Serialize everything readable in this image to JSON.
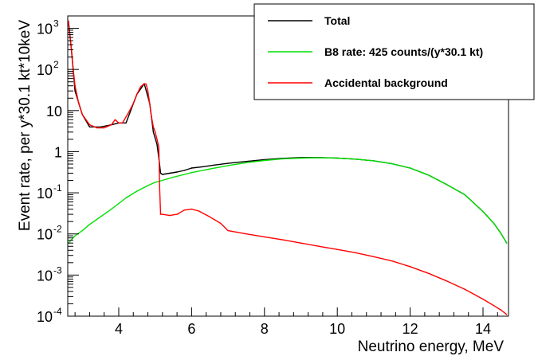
{
  "chart_data": {
    "type": "line",
    "xlabel": "Neutrino energy, MeV",
    "ylabel": "Event rate, per y*30.1 kt*10keV",
    "x_range": [
      2.6,
      14.7
    ],
    "y_range": [
      0.0001,
      2000
    ],
    "y_scale": "log",
    "grid": false,
    "legend_position": "top-right",
    "x_ticks": [
      4,
      6,
      8,
      10,
      12,
      14
    ],
    "x_tick_labels": [
      "4",
      "6",
      "8",
      "10",
      "12",
      "14"
    ],
    "y_ticks": [
      0.0001,
      0.001,
      0.01,
      0.1,
      1,
      10,
      100,
      1000
    ],
    "y_tick_labels": [
      {
        "base": "10",
        "exp": "-4"
      },
      {
        "base": "10",
        "exp": "-3"
      },
      {
        "base": "10",
        "exp": "-2"
      },
      {
        "base": "10",
        "exp": "-1"
      },
      {
        "base": "1",
        "exp": ""
      },
      {
        "base": "10",
        "exp": ""
      },
      {
        "base": "10",
        "exp": "2"
      },
      {
        "base": "10",
        "exp": "3"
      }
    ],
    "series": [
      {
        "name": "Total",
        "color": "#000000",
        "x": [
          2.62,
          2.7,
          2.8,
          3.0,
          3.2,
          3.5,
          3.8,
          4.0,
          4.2,
          4.5,
          4.7,
          4.85,
          4.95,
          5.05,
          5.1,
          5.15,
          5.2,
          5.4,
          5.6,
          5.8,
          6.0,
          6.3,
          6.6,
          7.0,
          7.5,
          8.0,
          8.5,
          9.0,
          9.5,
          10.0,
          10.5,
          11.0,
          11.5,
          12.0,
          12.5,
          13.0,
          13.5,
          14.0,
          14.3,
          14.5,
          14.65
        ],
        "y": [
          1500,
          300,
          30,
          8,
          4,
          4,
          4.5,
          5,
          5,
          25,
          45,
          15,
          3,
          1.5,
          0.7,
          0.3,
          0.28,
          0.3,
          0.32,
          0.35,
          0.4,
          0.43,
          0.47,
          0.52,
          0.58,
          0.64,
          0.69,
          0.72,
          0.72,
          0.7,
          0.66,
          0.6,
          0.51,
          0.4,
          0.27,
          0.16,
          0.09,
          0.035,
          0.018,
          0.01,
          0.006
        ]
      },
      {
        "name": "B8 rate: 425 counts/(y*30.1 kt)",
        "color": "#00e000",
        "x": [
          2.62,
          2.8,
          3.0,
          3.2,
          3.5,
          3.8,
          4.0,
          4.2,
          4.5,
          4.8,
          5.0,
          5.2,
          5.5,
          6.0,
          6.5,
          7.0,
          7.5,
          8.0,
          8.5,
          9.0,
          9.5,
          10.0,
          10.5,
          11.0,
          11.5,
          12.0,
          12.5,
          13.0,
          13.5,
          14.0,
          14.3,
          14.5,
          14.65
        ],
        "y": [
          0.006,
          0.009,
          0.012,
          0.017,
          0.026,
          0.04,
          0.055,
          0.075,
          0.11,
          0.15,
          0.18,
          0.2,
          0.24,
          0.31,
          0.38,
          0.46,
          0.54,
          0.61,
          0.67,
          0.7,
          0.71,
          0.7,
          0.66,
          0.6,
          0.51,
          0.4,
          0.27,
          0.16,
          0.09,
          0.035,
          0.018,
          0.01,
          0.006
        ]
      },
      {
        "name": "Accidental background",
        "color": "#ff0000",
        "x": [
          2.62,
          2.65,
          2.7,
          2.75,
          2.8,
          2.9,
          3.0,
          3.2,
          3.4,
          3.6,
          3.8,
          3.9,
          4.0,
          4.1,
          4.2,
          4.3,
          4.4,
          4.5,
          4.6,
          4.7,
          4.75,
          4.8,
          4.85,
          4.9,
          4.95,
          5.0,
          5.05,
          5.1,
          5.12,
          5.15,
          5.2,
          5.4,
          5.6,
          5.8,
          6.0,
          6.2,
          6.5,
          6.8,
          7.0,
          7.5,
          8.0,
          8.5,
          9.0,
          9.5,
          10.0,
          10.5,
          11.0,
          11.5,
          12.0,
          12.5,
          13.0,
          13.5,
          14.0,
          14.3,
          14.5,
          14.65
        ],
        "y": [
          1500,
          800,
          300,
          100,
          40,
          15,
          8,
          4.5,
          3.8,
          3.8,
          4.5,
          6,
          5,
          5,
          7,
          10,
          15,
          25,
          38,
          45,
          44,
          30,
          15,
          7,
          4,
          3,
          2,
          1.3,
          0.15,
          0.03,
          0.03,
          0.028,
          0.03,
          0.038,
          0.04,
          0.036,
          0.026,
          0.018,
          0.012,
          0.01,
          0.0085,
          0.0072,
          0.006,
          0.005,
          0.0042,
          0.0035,
          0.0028,
          0.0022,
          0.0016,
          0.0011,
          0.00072,
          0.00045,
          0.00026,
          0.00018,
          0.00014,
          0.00011
        ]
      }
    ]
  }
}
